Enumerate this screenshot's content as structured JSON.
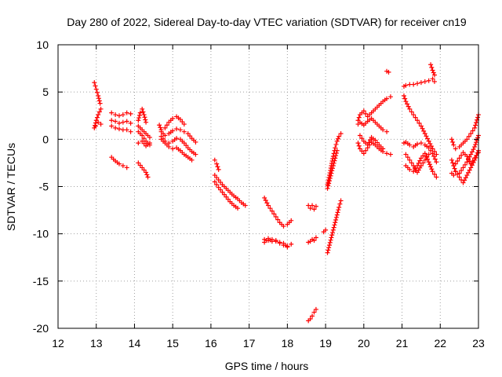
{
  "chart_data": {
    "type": "scatter",
    "title": "Day 280 of 2022, Sidereal Day-to-day VTEC variation (SDTVAR) for receiver cn19",
    "xlabel": "GPS time / hours",
    "ylabel": "SDTVAR / TECUs",
    "xlim": [
      12,
      23
    ],
    "ylim": [
      -20,
      10
    ],
    "xticks": [
      12,
      13,
      14,
      15,
      16,
      17,
      18,
      19,
      20,
      21,
      22,
      23
    ],
    "yticks": [
      -20,
      -15,
      -10,
      -5,
      0,
      5,
      10
    ],
    "grid": true,
    "marker": "+",
    "color": "#ff0000",
    "tracks": [
      {
        "x": [
          12.95,
          13.0,
          13.05,
          13.1
        ],
        "y": [
          6.0,
          5.3,
          4.6,
          3.8
        ]
      },
      {
        "x": [
          12.95,
          13.0,
          13.05,
          13.12
        ],
        "y": [
          1.2,
          2.0,
          2.6,
          3.2
        ]
      },
      {
        "x": [
          12.98,
          13.05,
          13.12
        ],
        "y": [
          1.4,
          1.8,
          1.6
        ]
      },
      {
        "x": [
          13.4,
          13.5,
          13.6,
          13.7,
          13.8,
          13.9
        ],
        "y": [
          2.8,
          2.6,
          2.5,
          2.6,
          2.8,
          2.7
        ]
      },
      {
        "x": [
          13.4,
          13.5,
          13.6,
          13.7,
          13.8,
          13.9
        ],
        "y": [
          2.0,
          1.9,
          1.7,
          1.8,
          1.9,
          1.7
        ]
      },
      {
        "x": [
          13.4,
          13.5,
          13.6,
          13.7,
          13.8,
          13.9
        ],
        "y": [
          1.4,
          1.2,
          1.1,
          1.0,
          1.0,
          0.8
        ]
      },
      {
        "x": [
          13.4,
          13.5,
          13.6,
          13.7,
          13.8
        ],
        "y": [
          -1.9,
          -2.3,
          -2.6,
          -2.8,
          -3.0
        ]
      },
      {
        "x": [
          14.1,
          14.15,
          14.2,
          14.25,
          14.3
        ],
        "y": [
          2.0,
          2.8,
          3.2,
          2.6,
          1.8
        ]
      },
      {
        "x": [
          14.1,
          14.2,
          14.3,
          14.4
        ],
        "y": [
          1.4,
          1.0,
          0.6,
          0.2
        ]
      },
      {
        "x": [
          14.1,
          14.2,
          14.3,
          14.4
        ],
        "y": [
          0.8,
          0.4,
          -0.2,
          -0.6
        ]
      },
      {
        "x": [
          14.1,
          14.2,
          14.3,
          14.4
        ],
        "y": [
          -0.4,
          -0.2,
          -0.7,
          -0.4
        ]
      },
      {
        "x": [
          14.1,
          14.2,
          14.3,
          14.35
        ],
        "y": [
          -2.5,
          -3.0,
          -3.5,
          -4.0
        ]
      },
      {
        "x": [
          14.65,
          14.7,
          14.8,
          14.9,
          15.0,
          15.1,
          15.2,
          15.3
        ],
        "y": [
          1.5,
          1.0,
          1.2,
          1.8,
          2.2,
          2.4,
          2.1,
          1.6
        ]
      },
      {
        "x": [
          14.7,
          14.8,
          14.9,
          15.0,
          15.1,
          15.2,
          15.3,
          15.4,
          15.5,
          15.6
        ],
        "y": [
          0.8,
          0.4,
          0.6,
          0.9,
          1.1,
          1.0,
          0.8,
          0.6,
          0.1,
          -0.3
        ]
      },
      {
        "x": [
          14.7,
          14.8,
          14.9,
          15.0,
          15.1,
          15.2,
          15.3,
          15.4,
          15.5,
          15.6
        ],
        "y": [
          0.3,
          -0.2,
          -0.4,
          -0.2,
          0.1,
          0.0,
          -0.4,
          -0.9,
          -1.3,
          -1.6
        ]
      },
      {
        "x": [
          14.7,
          14.8,
          14.9,
          15.0,
          15.1,
          15.2,
          15.3,
          15.4,
          15.5
        ],
        "y": [
          0.0,
          -0.4,
          -0.8,
          -1.0,
          -0.9,
          -1.2,
          -1.6,
          -1.9,
          -2.2
        ]
      },
      {
        "x": [
          16.1,
          16.2,
          16.3,
          16.4,
          16.5,
          16.6,
          16.7,
          16.8,
          16.9
        ],
        "y": [
          -3.8,
          -4.3,
          -4.8,
          -5.2,
          -5.6,
          -6.0,
          -6.3,
          -6.7,
          -7.0
        ]
      },
      {
        "x": [
          16.1,
          16.2,
          16.3,
          16.4,
          16.5,
          16.6,
          16.7
        ],
        "y": [
          -4.5,
          -5.1,
          -5.6,
          -6.1,
          -6.6,
          -7.0,
          -7.3
        ]
      },
      {
        "x": [
          16.1,
          16.15,
          16.2
        ],
        "y": [
          -2.2,
          -2.6,
          -3.2
        ]
      },
      {
        "x": [
          17.4,
          17.5,
          17.6,
          17.7,
          17.8,
          17.9,
          18.0,
          18.1
        ],
        "y": [
          -6.2,
          -7.0,
          -7.6,
          -8.2,
          -8.8,
          -9.2,
          -9.0,
          -8.6
        ]
      },
      {
        "x": [
          17.4,
          17.5,
          17.6,
          17.7,
          17.8,
          17.9,
          18.0,
          18.1
        ],
        "y": [
          -10.6,
          -10.7,
          -10.6,
          -10.8,
          -11.0,
          -11.2,
          -11.3,
          -11.1
        ]
      },
      {
        "x": [
          17.4,
          17.5,
          17.6,
          17.7,
          17.8,
          17.9,
          18.0
        ],
        "y": [
          -10.9,
          -10.5,
          -10.8,
          -10.7,
          -10.9,
          -11.0,
          -11.4
        ]
      },
      {
        "x": [
          18.55,
          18.6,
          18.65,
          18.7,
          18.75
        ],
        "y": [
          -19.2,
          -19.0,
          -18.7,
          -18.3,
          -18.0
        ]
      },
      {
        "x": [
          18.55,
          18.6,
          18.65,
          18.7,
          18.75
        ],
        "y": [
          -10.9,
          -10.8,
          -10.6,
          -10.7,
          -10.4
        ]
      },
      {
        "x": [
          18.55,
          18.6,
          18.65,
          18.7,
          18.75
        ],
        "y": [
          -7.0,
          -7.3,
          -7.0,
          -7.4,
          -7.1
        ]
      },
      {
        "x": [
          18.95,
          19.0
        ],
        "y": [
          -9.8,
          -9.6
        ]
      },
      {
        "x": [
          19.05,
          19.1,
          19.15,
          19.2,
          19.25,
          19.3,
          19.35,
          19.4
        ],
        "y": [
          -12.0,
          -11.2,
          -10.4,
          -9.6,
          -8.8,
          -8.0,
          -7.2,
          -6.5
        ]
      },
      {
        "x": [
          19.05,
          19.1,
          19.15,
          19.2,
          19.25,
          19.3,
          19.35,
          19.4
        ],
        "y": [
          -4.8,
          -3.8,
          -2.8,
          -1.8,
          -0.9,
          -0.2,
          0.3,
          0.6
        ]
      },
      {
        "x": [
          19.05,
          19.1,
          19.15,
          19.2,
          19.25,
          19.3
        ],
        "y": [
          -5.2,
          -4.4,
          -3.6,
          -2.8,
          -2.0,
          -1.2
        ]
      },
      {
        "x": [
          19.85,
          19.9,
          20.0,
          20.1,
          20.2,
          20.3,
          20.4,
          20.5,
          20.6,
          20.7
        ],
        "y": [
          2.0,
          2.6,
          3.0,
          2.4,
          2.8,
          3.2,
          3.6,
          4.0,
          4.3,
          4.5
        ]
      },
      {
        "x": [
          19.85,
          19.9,
          20.0,
          20.1,
          20.2,
          20.3,
          20.4,
          20.5,
          20.6
        ],
        "y": [
          1.6,
          1.8,
          1.5,
          1.9,
          2.2,
          1.8,
          1.4,
          1.0,
          0.8
        ]
      },
      {
        "x": [
          19.85,
          19.9,
          20.0,
          20.1,
          20.2,
          20.3,
          20.4,
          20.5,
          20.6,
          20.7
        ],
        "y": [
          -0.4,
          -1.0,
          -1.5,
          -0.9,
          -0.3,
          -0.6,
          -1.0,
          -1.3,
          -1.5,
          -1.6
        ]
      },
      {
        "x": [
          19.9,
          20.0,
          20.1,
          20.2,
          20.3,
          20.4,
          20.5
        ],
        "y": [
          0.4,
          -0.2,
          -0.6,
          0.2,
          -0.1,
          -0.6,
          -1.0
        ]
      },
      {
        "x": [
          20.6,
          20.65
        ],
        "y": [
          7.2,
          7.1
        ]
      },
      {
        "x": [
          21.05,
          21.1,
          21.2,
          21.3,
          21.4,
          21.5,
          21.6,
          21.7,
          21.8,
          21.85
        ],
        "y": [
          5.6,
          5.7,
          5.8,
          5.8,
          5.9,
          6.0,
          6.1,
          6.2,
          6.4,
          6.1
        ]
      },
      {
        "x": [
          21.75,
          21.8,
          21.85
        ],
        "y": [
          7.9,
          7.3,
          6.8
        ]
      },
      {
        "x": [
          21.05,
          21.1,
          21.2,
          21.3,
          21.4,
          21.5,
          21.6,
          21.7,
          21.8,
          21.9
        ],
        "y": [
          4.6,
          4.0,
          3.2,
          2.6,
          2.0,
          1.4,
          0.6,
          -0.2,
          -1.0,
          -1.6
        ]
      },
      {
        "x": [
          21.05,
          21.1,
          21.2,
          21.3,
          21.4,
          21.5,
          21.6,
          21.7,
          21.8,
          21.9
        ],
        "y": [
          -0.4,
          -0.3,
          -0.6,
          -0.8,
          -0.5,
          -0.4,
          -0.6,
          -0.9,
          -1.5,
          -2.4
        ]
      },
      {
        "x": [
          21.1,
          21.2,
          21.3,
          21.4,
          21.5,
          21.6,
          21.7,
          21.8,
          21.9
        ],
        "y": [
          -2.8,
          -3.2,
          -3.4,
          -2.8,
          -2.0,
          -1.5,
          -2.4,
          -3.4,
          -4.0
        ]
      },
      {
        "x": [
          21.1,
          21.2,
          21.3,
          21.4,
          21.5,
          21.6,
          21.7
        ],
        "y": [
          -1.6,
          -2.2,
          -2.8,
          -3.5,
          -2.8,
          -2.2,
          -1.6
        ]
      },
      {
        "x": [
          22.3,
          22.35,
          22.4,
          22.5,
          22.6,
          22.7,
          22.8,
          22.9,
          23.0
        ],
        "y": [
          0.0,
          -0.6,
          -1.0,
          -0.8,
          -0.4,
          0.0,
          0.6,
          1.2,
          2.6
        ]
      },
      {
        "x": [
          22.3,
          22.35,
          22.4,
          22.5,
          22.6,
          22.7,
          22.8,
          22.9,
          23.0
        ],
        "y": [
          -2.2,
          -2.8,
          -3.4,
          -3.6,
          -3.0,
          -2.4,
          -1.6,
          -0.8,
          0.4
        ]
      },
      {
        "x": [
          22.3,
          22.35,
          22.4,
          22.5,
          22.6,
          22.7,
          22.8,
          22.9,
          23.0
        ],
        "y": [
          -3.6,
          -3.8,
          -3.4,
          -4.0,
          -4.6,
          -3.8,
          -3.0,
          -2.2,
          -1.2
        ]
      },
      {
        "x": [
          22.4,
          22.5,
          22.6,
          22.7,
          22.8,
          22.9,
          23.0
        ],
        "y": [
          -2.6,
          -2.0,
          -1.4,
          -1.8,
          -2.6,
          -2.0,
          -1.4
        ]
      }
    ]
  }
}
